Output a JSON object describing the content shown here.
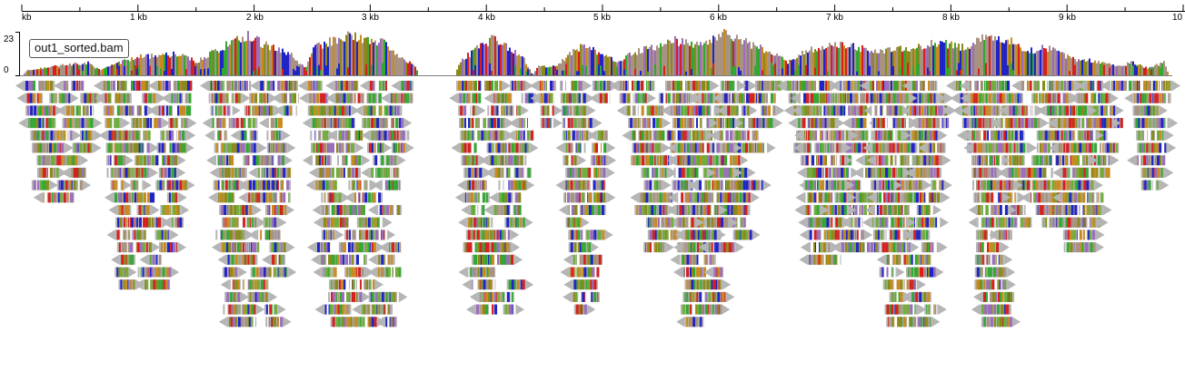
{
  "ruler": {
    "ticks": [
      "kb",
      "1 kb",
      "2 kb",
      "3 kb",
      "4 kb",
      "5 kb",
      "6 kb",
      "7 kb",
      "8 kb",
      "9 kb",
      "10"
    ]
  },
  "track": {
    "label": "out1_sorted.bam",
    "coverage_max": "23",
    "coverage_min": "0"
  },
  "colors": {
    "reverse_read": "#b5b5b5",
    "base_A": "#32a832",
    "base_C": "#1f24c7",
    "base_G": "#c98b1f",
    "base_T": "#d62020",
    "mismatch_olive": "#8a8a1a",
    "mismatch_purple": "#9a6dbd",
    "coverage_fill": "#a89383"
  }
}
